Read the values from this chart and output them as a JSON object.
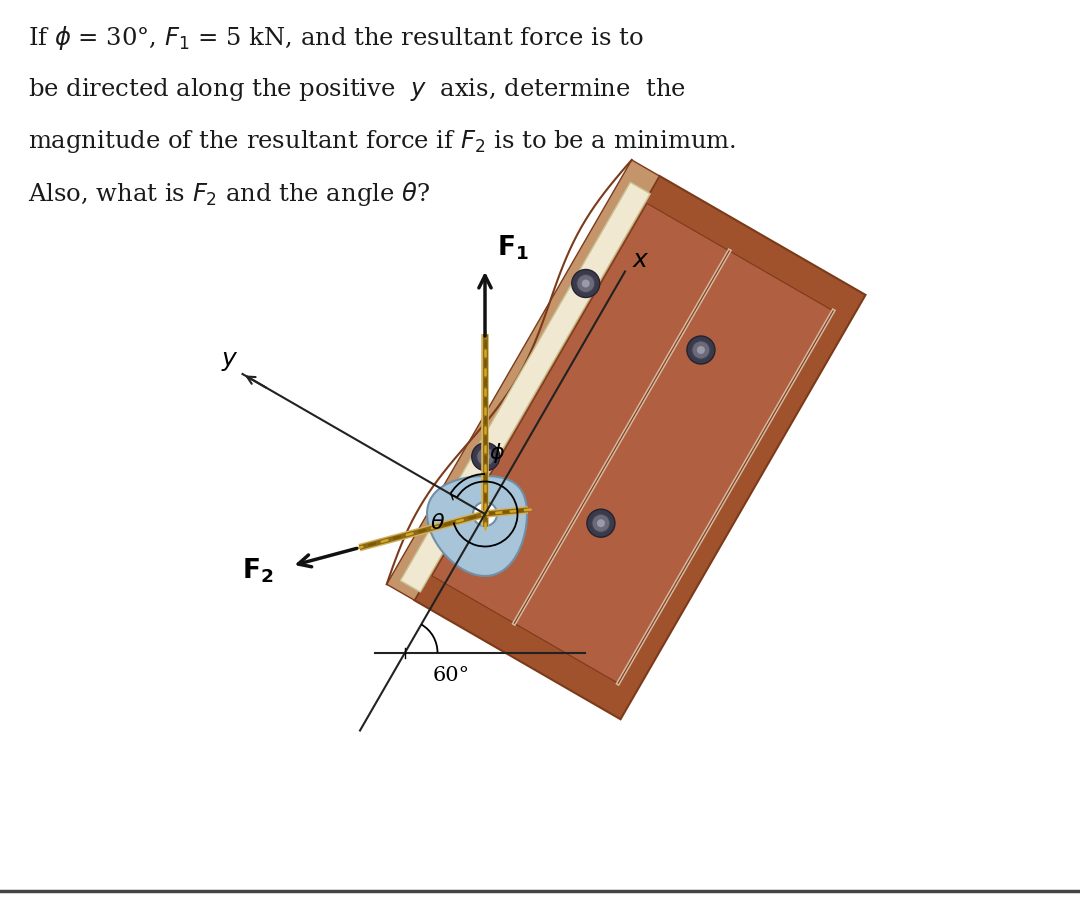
{
  "background_color": "#ffffff",
  "fig_width": 10.8,
  "fig_height": 8.99,
  "text_fontsize": 17.5,
  "board_dark": "#7B3A1A",
  "board_mid": "#A0522D",
  "board_light": "#C4956A",
  "board_pale": "#D4B8A0",
  "cream": "#F0E8D0",
  "bolt_dark": "#444455",
  "bolt_mid": "#666677",
  "connector_fill": "#A8C4D8",
  "connector_edge": "#7090A8",
  "rope_gold": "#B8860B",
  "rope_dark": "#7A5800",
  "rope_light": "#D4A820",
  "arrow_color": "#111111",
  "axis_color": "#222222"
}
